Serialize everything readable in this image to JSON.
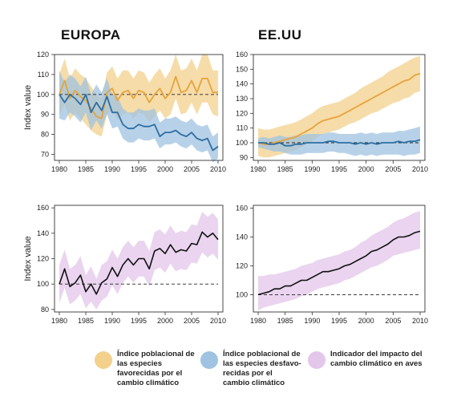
{
  "titles": {
    "europe": "EUROPA",
    "usa": "EE.UU"
  },
  "colors": {
    "orange": "#e8a33a",
    "blue": "#2f6fa3",
    "purple": "#c9a0d3",
    "black": "#111111",
    "orange_band": "#f3d08c",
    "blue_band": "#9fc3e0",
    "purple_band": "#e3c6ea"
  },
  "legend": [
    {
      "label": "Índice poblacional de\nlas especies\nfavorecidas por el\ncambio climático",
      "color": "#f3d08c"
    },
    {
      "label": "Índice poblacional de\nlas especies desfavo-\nrecidas por el\ncambio climático",
      "color": "#9fc3e0"
    },
    {
      "label": "Indicador del impacto  del\ncambio climático en aves",
      "color": "#e3c6ea"
    }
  ],
  "chart_data": [
    {
      "type": "line",
      "title": "EUROPA",
      "ylabel": "Index value",
      "xlim": [
        1980,
        2010
      ],
      "ylim": [
        67,
        120
      ],
      "xticks": [
        1980,
        1985,
        1990,
        1995,
        2000,
        2005,
        2010
      ],
      "yticks": [
        70,
        80,
        90,
        100,
        110,
        120
      ],
      "baseline": 100,
      "x": [
        1980,
        1981,
        1982,
        1983,
        1984,
        1985,
        1986,
        1987,
        1988,
        1989,
        1990,
        1991,
        1992,
        1993,
        1994,
        1995,
        1996,
        1997,
        1998,
        1999,
        2000,
        2001,
        2002,
        2003,
        2004,
        2005,
        2006,
        2007,
        2008,
        2009,
        2010
      ],
      "series": [
        {
          "color": "orange",
          "values": [
            100,
            107,
            98,
            102,
            99,
            97,
            93,
            89,
            88,
            101,
            103,
            97,
            101,
            102,
            98,
            102,
            101,
            96,
            100,
            103,
            98,
            101,
            109,
            101,
            102,
            107,
            101,
            108,
            108,
            101,
            101
          ],
          "lower": [
            90,
            95,
            87,
            91,
            88,
            85,
            82,
            80,
            79,
            90,
            92,
            87,
            90,
            91,
            88,
            91,
            90,
            86,
            89,
            92,
            88,
            90,
            98,
            90,
            91,
            96,
            90,
            96,
            96,
            90,
            89
          ],
          "upper": [
            110,
            118,
            108,
            113,
            110,
            108,
            104,
            100,
            98,
            111,
            114,
            108,
            112,
            112,
            108,
            112,
            111,
            106,
            110,
            113,
            108,
            112,
            120,
            112,
            113,
            118,
            112,
            120,
            120,
            112,
            112
          ]
        },
        {
          "color": "blue",
          "values": [
            100,
            96,
            100,
            98,
            95,
            100,
            91,
            96,
            92,
            99,
            91,
            91,
            85,
            83,
            83,
            85,
            84,
            84,
            85,
            79,
            81,
            81,
            82,
            80,
            79,
            81,
            78,
            77,
            78,
            72,
            74
          ],
          "lower": [
            88,
            87,
            91,
            89,
            86,
            91,
            82,
            87,
            83,
            90,
            83,
            84,
            78,
            76,
            76,
            78,
            77,
            77,
            78,
            73,
            75,
            75,
            76,
            74,
            73,
            75,
            72,
            71,
            72,
            66,
            68
          ],
          "upper": [
            112,
            106,
            110,
            108,
            104,
            109,
            100,
            105,
            101,
            108,
            100,
            99,
            93,
            91,
            91,
            93,
            92,
            92,
            93,
            86,
            88,
            88,
            89,
            87,
            86,
            88,
            85,
            84,
            85,
            79,
            81
          ]
        }
      ]
    },
    {
      "type": "line",
      "title": "EE.UU",
      "ylabel": "",
      "xlim": [
        1980,
        2010
      ],
      "ylim": [
        88,
        160
      ],
      "xticks": [
        1980,
        1985,
        1990,
        1995,
        2000,
        2005,
        2010
      ],
      "yticks": [
        90,
        100,
        110,
        120,
        130,
        140,
        150,
        160
      ],
      "baseline": 100,
      "x": [
        1980,
        1981,
        1982,
        1983,
        1984,
        1985,
        1986,
        1987,
        1988,
        1989,
        1990,
        1991,
        1992,
        1993,
        1994,
        1995,
        1996,
        1997,
        1998,
        1999,
        2000,
        2001,
        2002,
        2003,
        2004,
        2005,
        2006,
        2007,
        2008,
        2009,
        2010
      ],
      "series": [
        {
          "color": "orange",
          "values": [
            100,
            99,
            99,
            100,
            101,
            102,
            103,
            104,
            106,
            108,
            110,
            113,
            115,
            116,
            117,
            118,
            120,
            122,
            124,
            126,
            128,
            130,
            132,
            134,
            136,
            138,
            140,
            142,
            143,
            146,
            147
          ],
          "lower": [
            91,
            90,
            90,
            91,
            92,
            93,
            94,
            95,
            97,
            99,
            101,
            104,
            106,
            107,
            108,
            109,
            111,
            113,
            114,
            116,
            118,
            120,
            121,
            123,
            125,
            127,
            128,
            130,
            131,
            134,
            135
          ],
          "upper": [
            110,
            109,
            109,
            110,
            111,
            112,
            113,
            114,
            116,
            118,
            120,
            123,
            125,
            126,
            127,
            128,
            130,
            132,
            134,
            137,
            139,
            141,
            143,
            145,
            148,
            150,
            152,
            154,
            156,
            158,
            159
          ]
        },
        {
          "color": "blue",
          "values": [
            100,
            100,
            99,
            99,
            100,
            98,
            98,
            99,
            99,
            100,
            100,
            100,
            100,
            101,
            101,
            100,
            100,
            100,
            99,
            100,
            99,
            100,
            99,
            100,
            100,
            100,
            101,
            100,
            101,
            101,
            102
          ],
          "lower": [
            97,
            96,
            95,
            94,
            94,
            93,
            92,
            92,
            92,
            93,
            93,
            93,
            93,
            94,
            94,
            93,
            93,
            92,
            91,
            92,
            91,
            92,
            91,
            92,
            92,
            92,
            92,
            91,
            92,
            92,
            93
          ],
          "upper": [
            103,
            104,
            103,
            104,
            105,
            104,
            104,
            105,
            105,
            106,
            106,
            106,
            106,
            107,
            107,
            106,
            106,
            106,
            106,
            107,
            106,
            107,
            106,
            107,
            107,
            107,
            108,
            108,
            109,
            110,
            111
          ]
        }
      ]
    },
    {
      "type": "line",
      "title": "",
      "ylabel": "Index value",
      "xlim": [
        1980,
        2010
      ],
      "ylim": [
        78,
        162
      ],
      "xticks": [
        1980,
        1985,
        1990,
        1995,
        2000,
        2005,
        2010
      ],
      "yticks": [
        80,
        100,
        120,
        140,
        160
      ],
      "baseline": 100,
      "x": [
        1980,
        1981,
        1982,
        1983,
        1984,
        1985,
        1986,
        1987,
        1988,
        1989,
        1990,
        1991,
        1992,
        1993,
        1994,
        1995,
        1996,
        1997,
        1998,
        1999,
        2000,
        2001,
        2002,
        2003,
        2004,
        2005,
        2006,
        2007,
        2008,
        2009,
        2010
      ],
      "series": [
        {
          "color": "black",
          "values": [
            100,
            112,
            98,
            101,
            107,
            94,
            100,
            92,
            101,
            104,
            113,
            106,
            115,
            120,
            115,
            120,
            120,
            112,
            126,
            128,
            124,
            131,
            125,
            127,
            126,
            132,
            131,
            141,
            137,
            140,
            135
          ],
          "lower": [
            85,
            97,
            84,
            87,
            92,
            81,
            86,
            80,
            87,
            90,
            99,
            92,
            101,
            106,
            101,
            106,
            106,
            98,
            111,
            113,
            109,
            116,
            110,
            112,
            111,
            117,
            116,
            125,
            121,
            124,
            119
          ],
          "upper": [
            115,
            127,
            112,
            115,
            122,
            107,
            114,
            104,
            115,
            118,
            127,
            120,
            129,
            134,
            129,
            134,
            134,
            126,
            141,
            143,
            139,
            146,
            140,
            142,
            141,
            147,
            146,
            157,
            153,
            156,
            151
          ]
        }
      ]
    },
    {
      "type": "line",
      "title": "",
      "ylabel": "",
      "xlim": [
        1980,
        2010
      ],
      "ylim": [
        88,
        162
      ],
      "xticks": [
        1980,
        1985,
        1990,
        1995,
        2000,
        2005,
        2010
      ],
      "yticks": [
        80,
        100,
        120,
        140,
        160
      ],
      "baseline": 100,
      "x": [
        1980,
        1981,
        1982,
        1983,
        1984,
        1985,
        1986,
        1987,
        1988,
        1989,
        1990,
        1991,
        1992,
        1993,
        1994,
        1995,
        1996,
        1997,
        1998,
        1999,
        2000,
        2001,
        2002,
        2003,
        2004,
        2005,
        2006,
        2007,
        2008,
        2009,
        2010
      ],
      "series": [
        {
          "color": "black",
          "values": [
            100,
            101,
            102,
            104,
            104,
            106,
            106,
            108,
            110,
            110,
            112,
            114,
            116,
            116,
            117,
            118,
            120,
            121,
            123,
            125,
            127,
            130,
            131,
            133,
            135,
            138,
            140,
            140,
            141,
            143,
            144
          ],
          "lower": [
            89,
            91,
            92,
            93,
            94,
            95,
            96,
            97,
            99,
            100,
            102,
            104,
            105,
            106,
            107,
            108,
            110,
            111,
            113,
            115,
            117,
            119,
            120,
            122,
            124,
            127,
            128,
            129,
            130,
            131,
            132
          ],
          "upper": [
            113,
            113,
            114,
            114,
            115,
            116,
            117,
            118,
            120,
            121,
            122,
            124,
            125,
            126,
            127,
            128,
            130,
            131,
            133,
            136,
            138,
            141,
            143,
            145,
            147,
            150,
            152,
            153,
            155,
            157,
            158
          ]
        }
      ]
    }
  ]
}
